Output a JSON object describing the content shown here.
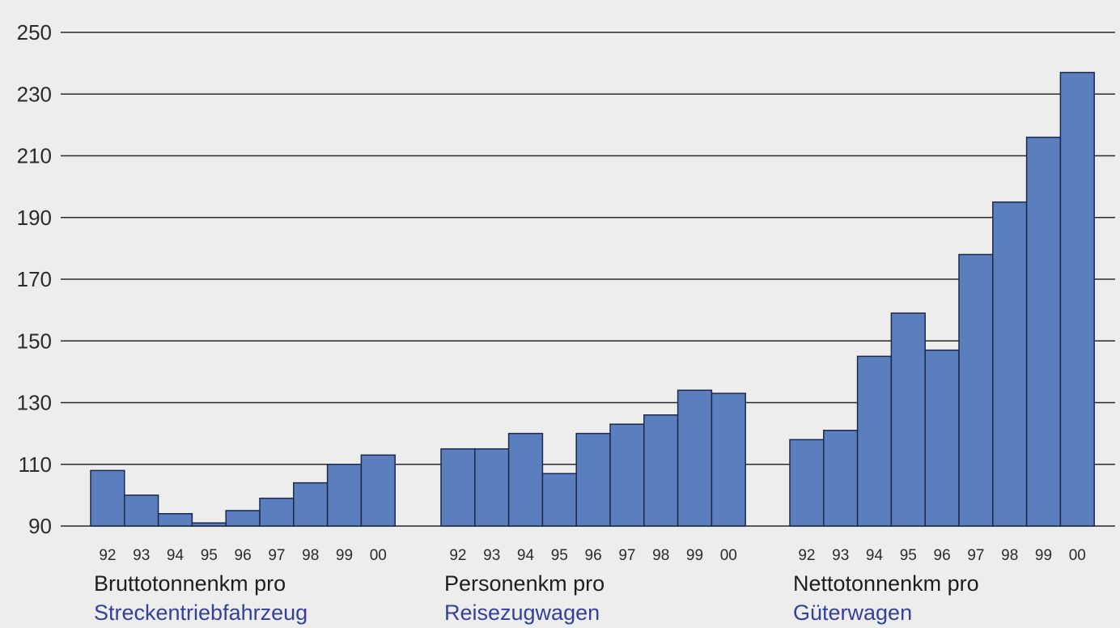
{
  "chart_data": {
    "type": "bar",
    "ylim": [
      90,
      250
    ],
    "yticks": [
      90,
      110,
      130,
      150,
      170,
      190,
      210,
      230,
      250
    ],
    "grid": true,
    "colors": {
      "bar": "#5b7fbe",
      "bar_edge": "#1b2a4a",
      "grid": "#2a2a2a",
      "label_title": "#1e1e1e",
      "label_sub": "#35409a"
    },
    "groups": [
      {
        "title": "Bruttotonnenkm pro",
        "subtitle": "Streckentriebfahrzeug",
        "categories": [
          "92",
          "93",
          "94",
          "95",
          "96",
          "97",
          "98",
          "99",
          "00"
        ],
        "values": [
          108,
          100,
          94,
          91,
          95,
          99,
          104,
          110,
          113
        ]
      },
      {
        "title": "Personenkm pro",
        "subtitle": "Reisezugwagen",
        "categories": [
          "92",
          "93",
          "94",
          "95",
          "96",
          "97",
          "98",
          "99",
          "00"
        ],
        "values": [
          115,
          115,
          120,
          107,
          120,
          123,
          126,
          134,
          133
        ]
      },
      {
        "title": "Nettotonnenkm pro",
        "subtitle": "Güterwagen",
        "categories": [
          "92",
          "93",
          "94",
          "95",
          "96",
          "97",
          "98",
          "99",
          "00"
        ],
        "values": [
          118,
          121,
          145,
          159,
          147,
          178,
          195,
          216,
          237
        ]
      }
    ]
  }
}
